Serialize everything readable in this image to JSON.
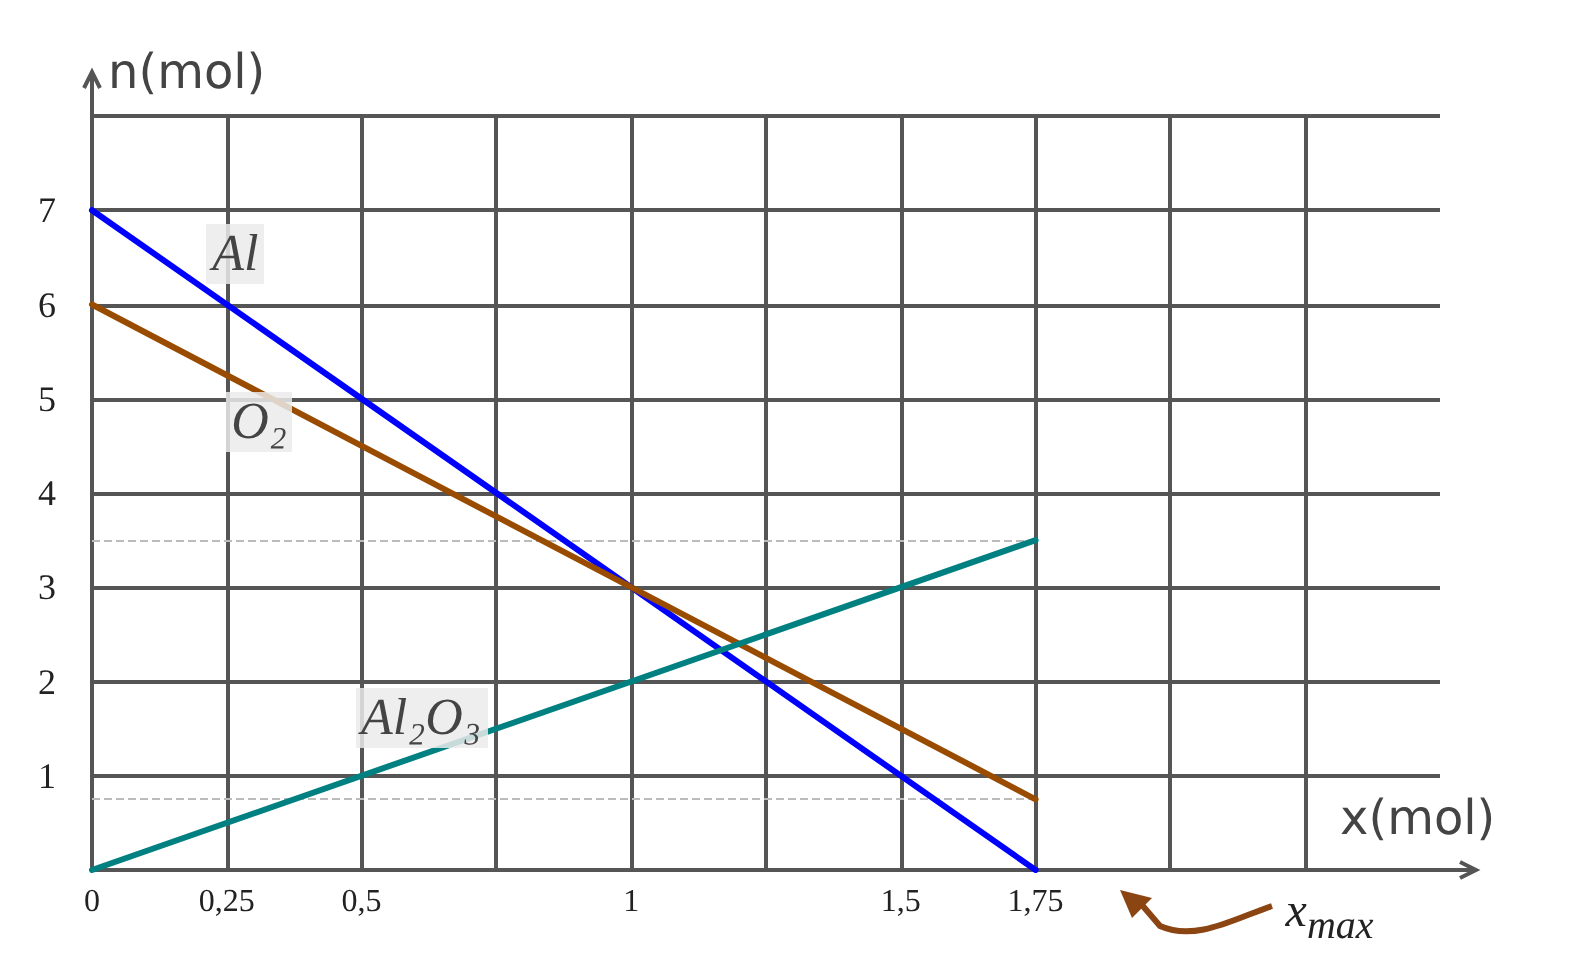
{
  "chart_data": {
    "type": "line",
    "ylabel": "n(mol)",
    "xlabel": "x(mol)",
    "x": [
      0,
      1.75
    ],
    "series": [
      {
        "name": "Al",
        "color": "#0000ff",
        "values": [
          7,
          0
        ]
      },
      {
        "name": "O₂",
        "color": "#994c00",
        "values": [
          6,
          0.75
        ]
      },
      {
        "name": "Al₂O₃",
        "color": "#008080",
        "values": [
          0,
          3.5
        ]
      }
    ],
    "xlim": [
      0,
      2.5
    ],
    "xticks": [
      0,
      {
        "value": 0.25,
        "label": "0,25"
      },
      {
        "value": 0.5,
        "label": "0,5"
      },
      {
        "value": 0.75,
        "label": null
      },
      1,
      {
        "value": 1.25,
        "label": null
      },
      {
        "value": 1.5,
        "label": "1,5"
      },
      {
        "value": 1.75,
        "label": "1,75"
      },
      {
        "value": 2,
        "label": null
      },
      {
        "value": 2.25,
        "label": null
      }
    ],
    "ylim": [
      0,
      8
    ],
    "yticks": [
      {
        "value": 0,
        "label": null
      },
      1,
      2,
      3,
      4,
      5,
      6,
      7,
      {
        "value": 8,
        "label": null
      }
    ],
    "ref_lines": [
      {
        "axis": "y",
        "value": 3.5,
        "color": "#bbbbbb",
        "line_style": "dashed"
      },
      {
        "axis": "y",
        "value": 0.75,
        "color": "#bbbbbb",
        "line_style": "dashed"
      }
    ],
    "annotations": [
      "x$_{max}$"
    ],
    "grid": true,
    "legend": false,
    "marker": "none",
    "line_style": "solid"
  }
}
